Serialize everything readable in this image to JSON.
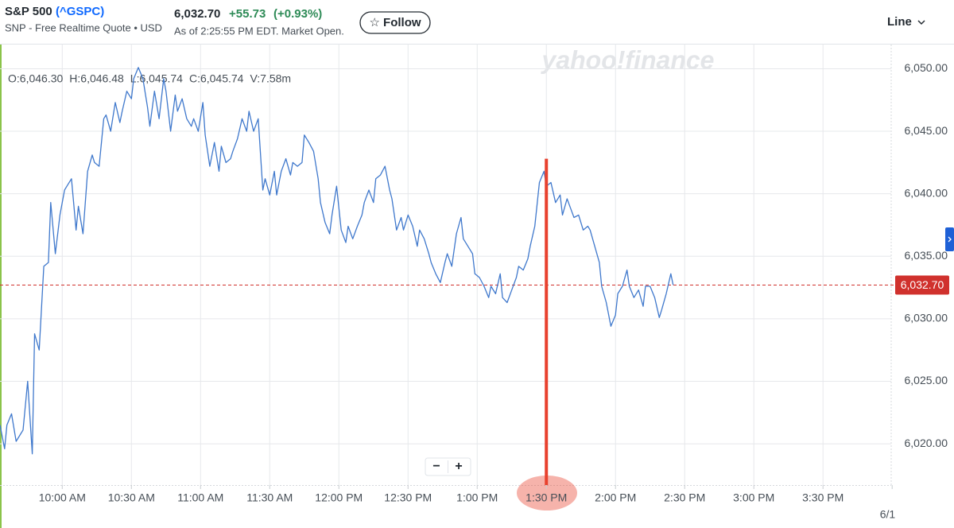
{
  "header": {
    "symbol": "S&P 500",
    "ticker": "(^GSPC)",
    "source": "SNP - Free Realtime Quote • USD",
    "price": "6,032.70",
    "change": "+55.73",
    "change_percent": "(+0.93%)",
    "as_of": "As of 2:25:55 PM EDT. Market Open.",
    "follow": "☆ Follow",
    "chart_mode": "Line"
  },
  "controls": {
    "zoom_out": "−",
    "zoom_in": "+"
  },
  "chart_data": {
    "type": "line",
    "watermark": "yahoo!finance",
    "color": "#3f78cc",
    "grid": true,
    "ohlc": [
      "O:6,046.30",
      "H:6,046.48",
      "L:6,045.74",
      "C:6,045.74",
      "V:7.58m"
    ],
    "xlim": [
      573,
      962
    ],
    "ylim": [
      6016.7,
      6052.0
    ],
    "xticks": [
      {
        "value": 600,
        "label": "10:00 AM"
      },
      {
        "value": 630,
        "label": "10:30 AM"
      },
      {
        "value": 660,
        "label": "11:00 AM"
      },
      {
        "value": 690,
        "label": "11:30 AM"
      },
      {
        "value": 720,
        "label": "12:00 PM"
      },
      {
        "value": 750,
        "label": "12:30 PM"
      },
      {
        "value": 780,
        "label": "1:00 PM"
      },
      {
        "value": 810,
        "label": "1:30 PM"
      },
      {
        "value": 840,
        "label": "2:00 PM"
      },
      {
        "value": 870,
        "label": "2:30 PM"
      },
      {
        "value": 900,
        "label": "3:00 PM"
      },
      {
        "value": 930,
        "label": "3:30 PM"
      }
    ],
    "date_label": {
      "value": 960,
      "label": "6/1"
    },
    "yticks": [
      {
        "value": 6020,
        "label": "6,020.00"
      },
      {
        "value": 6025,
        "label": "6,025.00"
      },
      {
        "value": 6030,
        "label": "6,030.00"
      },
      {
        "value": 6035,
        "label": "6,035.00"
      },
      {
        "value": 6040,
        "label": "6,040.00"
      },
      {
        "value": 6045,
        "label": "6,045.00"
      },
      {
        "value": 6050,
        "label": "6,050.00"
      }
    ],
    "reference_line": {
      "value": 6032.7,
      "label": "6,032.70",
      "color": "#d0312d"
    },
    "annotation": {
      "x": 810,
      "y": 6042.8,
      "color": "#e8412e"
    },
    "x": [
      573,
      575,
      576,
      578,
      580,
      582,
      583,
      585,
      587,
      588,
      590,
      592,
      594,
      595,
      597,
      599,
      601,
      602,
      604,
      606,
      607,
      609,
      611,
      613,
      614,
      616,
      618,
      619,
      621,
      623,
      625,
      626,
      628,
      630,
      631,
      633,
      635,
      637,
      638,
      640,
      642,
      644,
      645,
      647,
      649,
      650,
      652,
      654,
      656,
      657,
      659,
      661,
      662,
      664,
      666,
      668,
      669,
      671,
      673,
      674,
      676,
      678,
      680,
      681,
      683,
      685,
      687,
      688,
      690,
      692,
      693,
      695,
      697,
      699,
      700,
      702,
      704,
      705,
      707,
      709,
      711,
      712,
      714,
      716,
      717,
      719,
      721,
      723,
      724,
      726,
      728,
      730,
      731,
      733,
      735,
      736,
      738,
      740,
      742,
      743,
      745,
      747,
      748,
      750,
      752,
      754,
      755,
      757,
      759,
      760,
      762,
      764,
      766,
      767,
      769,
      771,
      773,
      774,
      776,
      778,
      779,
      781,
      783,
      785,
      786,
      788,
      790,
      791,
      793,
      795,
      797,
      798,
      800,
      802,
      803,
      805,
      807,
      809,
      810,
      812,
      814,
      816,
      817,
      819,
      821,
      822,
      824,
      826,
      828,
      829,
      831,
      833,
      834,
      836,
      838,
      840,
      841,
      843,
      845,
      846,
      848,
      850,
      852,
      853,
      855,
      857,
      859,
      860,
      862,
      864,
      865
    ],
    "values": [
      6021.5,
      6019.6,
      6021.5,
      6022.4,
      6020.2,
      6020.8,
      6021.1,
      6025,
      6019.2,
      6028.8,
      6027.5,
      6034.2,
      6034.5,
      6039.3,
      6035.2,
      6038.3,
      6040.3,
      6040.6,
      6041.2,
      6037.1,
      6039,
      6036.8,
      6041.8,
      6043.1,
      6042.5,
      6042.2,
      6046,
      6046.3,
      6045,
      6047.3,
      6045.7,
      6046.6,
      6048.2,
      6047.6,
      6049.2,
      6050.1,
      6049.2,
      6046.9,
      6045.4,
      6048.2,
      6046,
      6049.2,
      6048.2,
      6045,
      6047.9,
      6046.6,
      6047.6,
      6046,
      6045.4,
      6046,
      6045,
      6047.3,
      6044.7,
      6042.2,
      6044.1,
      6041.8,
      6043.8,
      6042.5,
      6042.8,
      6043.4,
      6044.4,
      6046,
      6045,
      6046.6,
      6045,
      6046,
      6040.3,
      6041.2,
      6039.9,
      6041.8,
      6039.9,
      6041.8,
      6042.8,
      6041.5,
      6042.5,
      6042.2,
      6042.5,
      6044.7,
      6044.1,
      6043.4,
      6041.2,
      6039.3,
      6037.7,
      6036.8,
      6038.3,
      6040.6,
      6037.1,
      6036.1,
      6037.4,
      6036.4,
      6037.4,
      6038.3,
      6039.3,
      6040.3,
      6039.3,
      6041.2,
      6041.5,
      6042.2,
      6040.3,
      6039.6,
      6037.1,
      6038.1,
      6037.1,
      6038.3,
      6037.4,
      6035.8,
      6037.1,
      6036.4,
      6035.2,
      6034.5,
      6033.6,
      6032.9,
      6034.5,
      6035.2,
      6034.2,
      6036.8,
      6038.1,
      6036.4,
      6035.8,
      6035.2,
      6033.6,
      6033.3,
      6032.6,
      6031.7,
      6032.6,
      6032,
      6033.6,
      6031.7,
      6031.3,
      6032.3,
      6033.3,
      6034.2,
      6033.9,
      6034.8,
      6035.8,
      6037.4,
      6040.9,
      6041.8,
      6040.6,
      6040.9,
      6039.3,
      6039.9,
      6038.3,
      6039.6,
      6038.6,
      6038.1,
      6038.3,
      6037.1,
      6037.4,
      6037.1,
      6035.8,
      6034.5,
      6032.6,
      6031.3,
      6029.4,
      6030.3,
      6032,
      6032.6,
      6033.9,
      6032.6,
      6031.7,
      6032.3,
      6031,
      6032.6,
      6032.6,
      6031.7,
      6030.1,
      6030.7,
      6032,
      6033.6,
      6032.7
    ]
  }
}
